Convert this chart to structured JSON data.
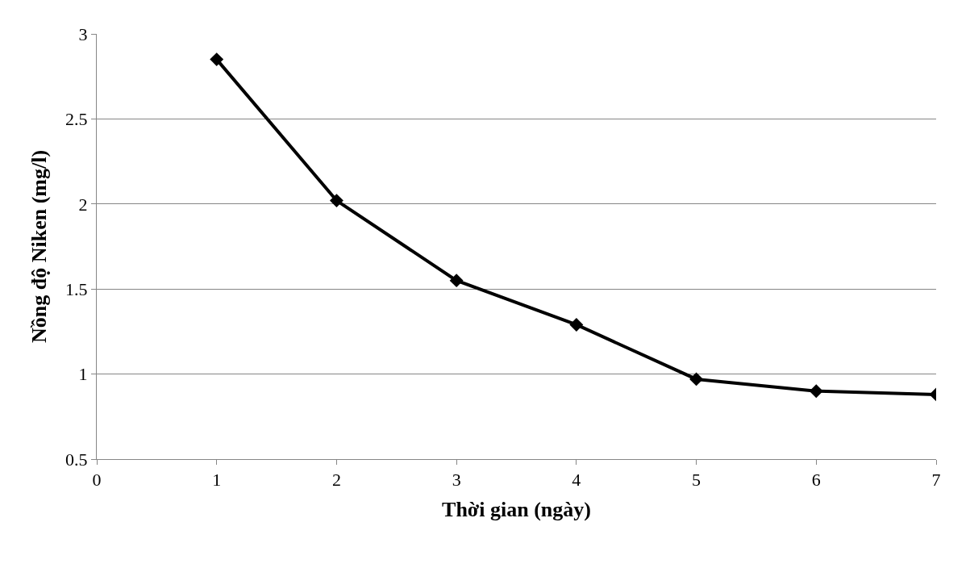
{
  "chart_data": {
    "type": "line",
    "xlabel": "Thời gian (ngày)",
    "ylabel": "Nồng độ Niken (mg/l)",
    "x": [
      1,
      2,
      3,
      4,
      5,
      6,
      7
    ],
    "series": [
      {
        "color": "#000000",
        "values": [
          2.85,
          2.02,
          1.55,
          1.29,
          0.97,
          0.9,
          0.88
        ]
      }
    ],
    "xlim": [
      0,
      7
    ],
    "xticks": [
      0,
      1,
      2,
      3,
      4,
      5,
      6,
      7
    ],
    "ylim": [
      0.5,
      3
    ],
    "yticks": [
      0.5,
      1,
      1.5,
      2,
      2.5,
      3
    ],
    "grid": "y",
    "marker": "diamond",
    "line_style": "solid",
    "legend": false
  }
}
